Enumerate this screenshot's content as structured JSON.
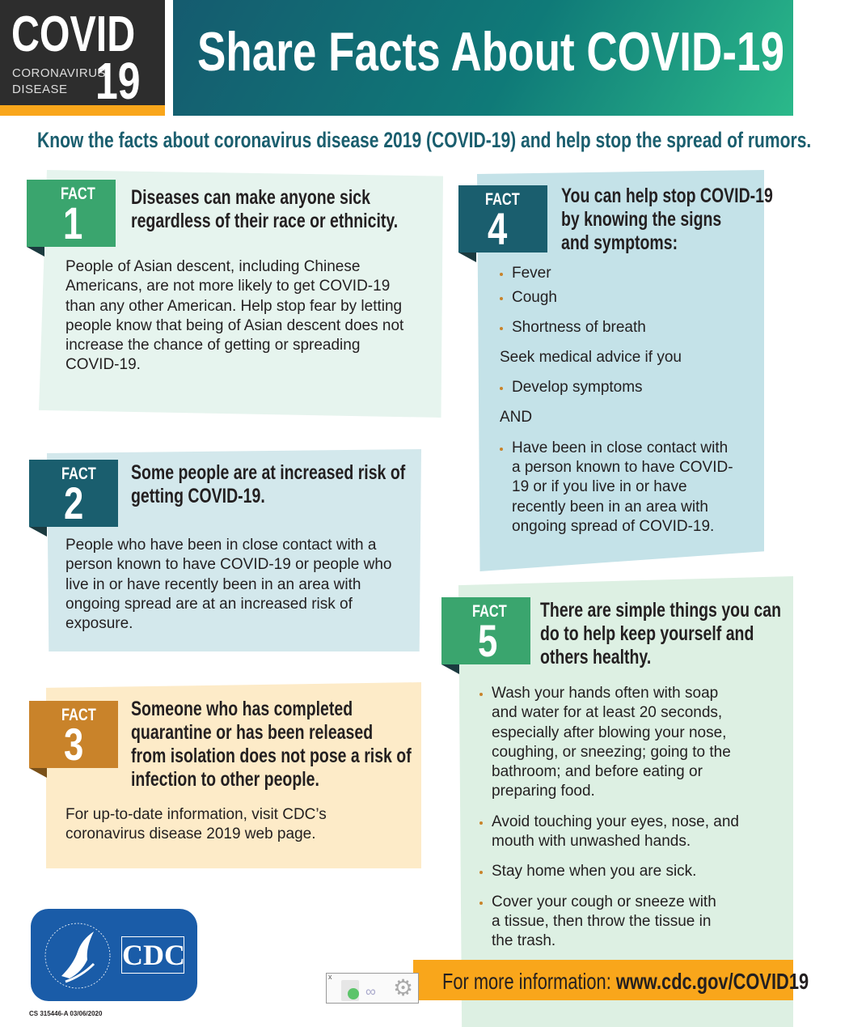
{
  "logo": {
    "line1": "COVID",
    "line2": "19",
    "sub1": "CORONAVIRUS",
    "sub2": "DISEASE"
  },
  "header": {
    "title": "Share Facts About COVID-19"
  },
  "subtitle": "Know the facts about coronavirus disease 2019 (COVID-19) and help stop the spread of rumors.",
  "colors": {
    "green": "#3aa56e",
    "teal": "#1a5e6e",
    "orange": "#c9832a",
    "yellow": "#f9a61b"
  },
  "facts": [
    {
      "label": "FACT",
      "num": "1",
      "heading": [
        "Diseases can make anyone sick",
        "regardless of their race or ethnicity."
      ],
      "body": "People of Asian descent, including Chinese Americans, are not more likely to get COVID-19 than any other American. Help stop fear by letting people know that being of Asian descent does not increase the chance of getting or spreading COVID-19."
    },
    {
      "label": "FACT",
      "num": "2",
      "heading": [
        "Some people are at increased risk of",
        "getting COVID-19."
      ],
      "body": "People who have been in close contact with a person known to have COVID-19 or people who live in or have recently been in an area with ongoing spread are at an increased risk of exposure."
    },
    {
      "label": "FACT",
      "num": "3",
      "heading": [
        "Someone who has completed",
        "quarantine or has been released",
        "from isolation does not pose a risk of",
        "infection to other people."
      ],
      "body": "For up-to-date information, visit CDC’s coronavirus disease 2019 web page."
    },
    {
      "label": "FACT",
      "num": "4",
      "heading": [
        "You can help stop COVID-19",
        "by knowing the signs",
        "and symptoms:"
      ],
      "symptoms": [
        "Fever",
        "Cough",
        "Shortness of breath"
      ],
      "seek": "Seek medical advice if you",
      "cond1": "Develop symptoms",
      "and": "AND",
      "cond2": "Have been in close contact with a person known to have COVID-19 or if you live in or have recently been in an area with ongoing spread of COVID-19."
    },
    {
      "label": "FACT",
      "num": "5",
      "heading": [
        "There are simple things you can",
        "do to help keep yourself and",
        "others healthy."
      ],
      "tips": [
        "Wash your hands often with soap and water for at least 20 seconds, especially after blowing your nose, coughing, or sneezing; going to the bathroom; and before eating or preparing food.",
        "Avoid touching your eyes, nose, and mouth with unwashed hands.",
        "Stay home when you are sick.",
        "Cover your cough or sneeze with a tissue, then throw the tissue in the trash."
      ]
    }
  ],
  "footer": {
    "prefix": "For more information: ",
    "url": "www.cdc.gov/COVID19"
  },
  "hhs": {
    "seal": "DEPARTMENT OF HEALTH & HUMAN SERVICES USA",
    "cdc": "CDC"
  },
  "code": "CS 315446-A   03/06/2020",
  "toolbar": {
    "close": "x"
  }
}
